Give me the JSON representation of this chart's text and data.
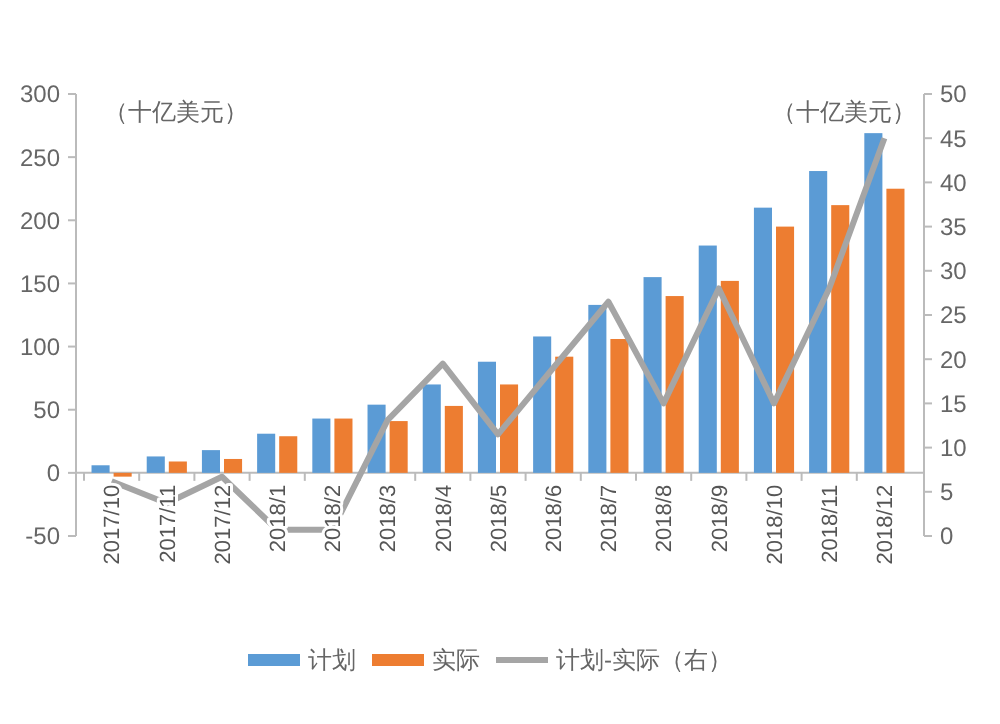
{
  "chart_data": {
    "type": "bar",
    "ylabel": "（十亿美元）",
    "y2label": "（十亿美元）",
    "categories": [
      "2017/10",
      "2017/11",
      "2017/12",
      "2018/1",
      "2018/2",
      "2018/3",
      "2018/4",
      "2018/5",
      "2018/6",
      "2018/7",
      "2018/8",
      "2018/9",
      "2018/10",
      "2018/11",
      "2018/12"
    ],
    "series": [
      {
        "name": "计划",
        "color": "#5b9bd5",
        "values": [
          6,
          13,
          18,
          31,
          43,
          54,
          70,
          88,
          108,
          133,
          155,
          180,
          210,
          239,
          269
        ]
      },
      {
        "name": "实际",
        "color": "#ed7d31",
        "values": [
          -3,
          9,
          11,
          29,
          43,
          41,
          53,
          70,
          92,
          106,
          140,
          152,
          195,
          212,
          225
        ]
      },
      {
        "name": "计划-实际（右）",
        "type": "line",
        "axis": "y2",
        "color": "#a5a5a5",
        "values": [
          6.2,
          3.7,
          6.7,
          0.7,
          0.7,
          13.1,
          19.5,
          11.5,
          19,
          26.5,
          15,
          28,
          15,
          28,
          45
        ]
      }
    ],
    "ylim": [
      -50,
      300
    ],
    "yticks": [
      -50,
      0,
      50,
      100,
      150,
      200,
      250,
      300
    ],
    "y2lim": [
      0,
      50
    ],
    "y2ticks": [
      0,
      5,
      10,
      15,
      20,
      25,
      30,
      35,
      40,
      45,
      50
    ],
    "legend": "bottom",
    "grid": false,
    "marker": "none",
    "line_style": "solid"
  }
}
